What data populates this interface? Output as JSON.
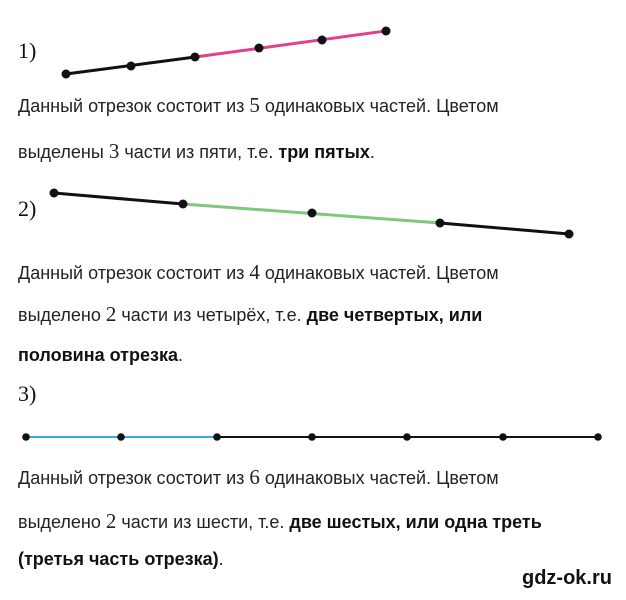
{
  "items": [
    {
      "number": "1)",
      "line1": {
        "a": "Данный отрезок состоит из ",
        "n": "5",
        "b": " одинаковых частей. Цветом"
      },
      "line2": {
        "a": "выделены ",
        "n": "3",
        "b": " части из пяти, т.е. ",
        "hl": "три пятых",
        "c": "."
      },
      "segment": {
        "points": 6,
        "highlighted_parts": "3 of 5",
        "highlight_color": "#e0408c",
        "base_color": "#111111"
      }
    },
    {
      "number": "2)",
      "line1": {
        "a": "Данный отрезок состоит из ",
        "n": "4",
        "b": " одинаковых частей. Цветом"
      },
      "line2": {
        "a": "выделено ",
        "n": "2",
        "b": " части из четырёх, т.е. ",
        "hl": "две четвертых, или"
      },
      "line3": {
        "hl": "половина отрезка",
        "c": "."
      },
      "segment": {
        "points": 5,
        "highlighted_parts": "2 of 4",
        "highlight_color": "#7fc77c",
        "base_color": "#111111"
      }
    },
    {
      "number": "3)",
      "line1": {
        "a": "Данный отрезок состоит из ",
        "n": "6",
        "b": " одинаковых частей. Цветом"
      },
      "line2": {
        "a": "выделено ",
        "n": "2",
        "b": " части из шести, т.е. ",
        "hl": "две шестых, или одна треть"
      },
      "line3": {
        "hl": "(третья часть отрезка)",
        "c": "."
      },
      "segment": {
        "points": 7,
        "highlighted_parts": "2 of 6",
        "highlight_color": "#3aa8e0",
        "base_color": "#111111"
      }
    }
  ],
  "watermark": "gdz-ok.ru"
}
